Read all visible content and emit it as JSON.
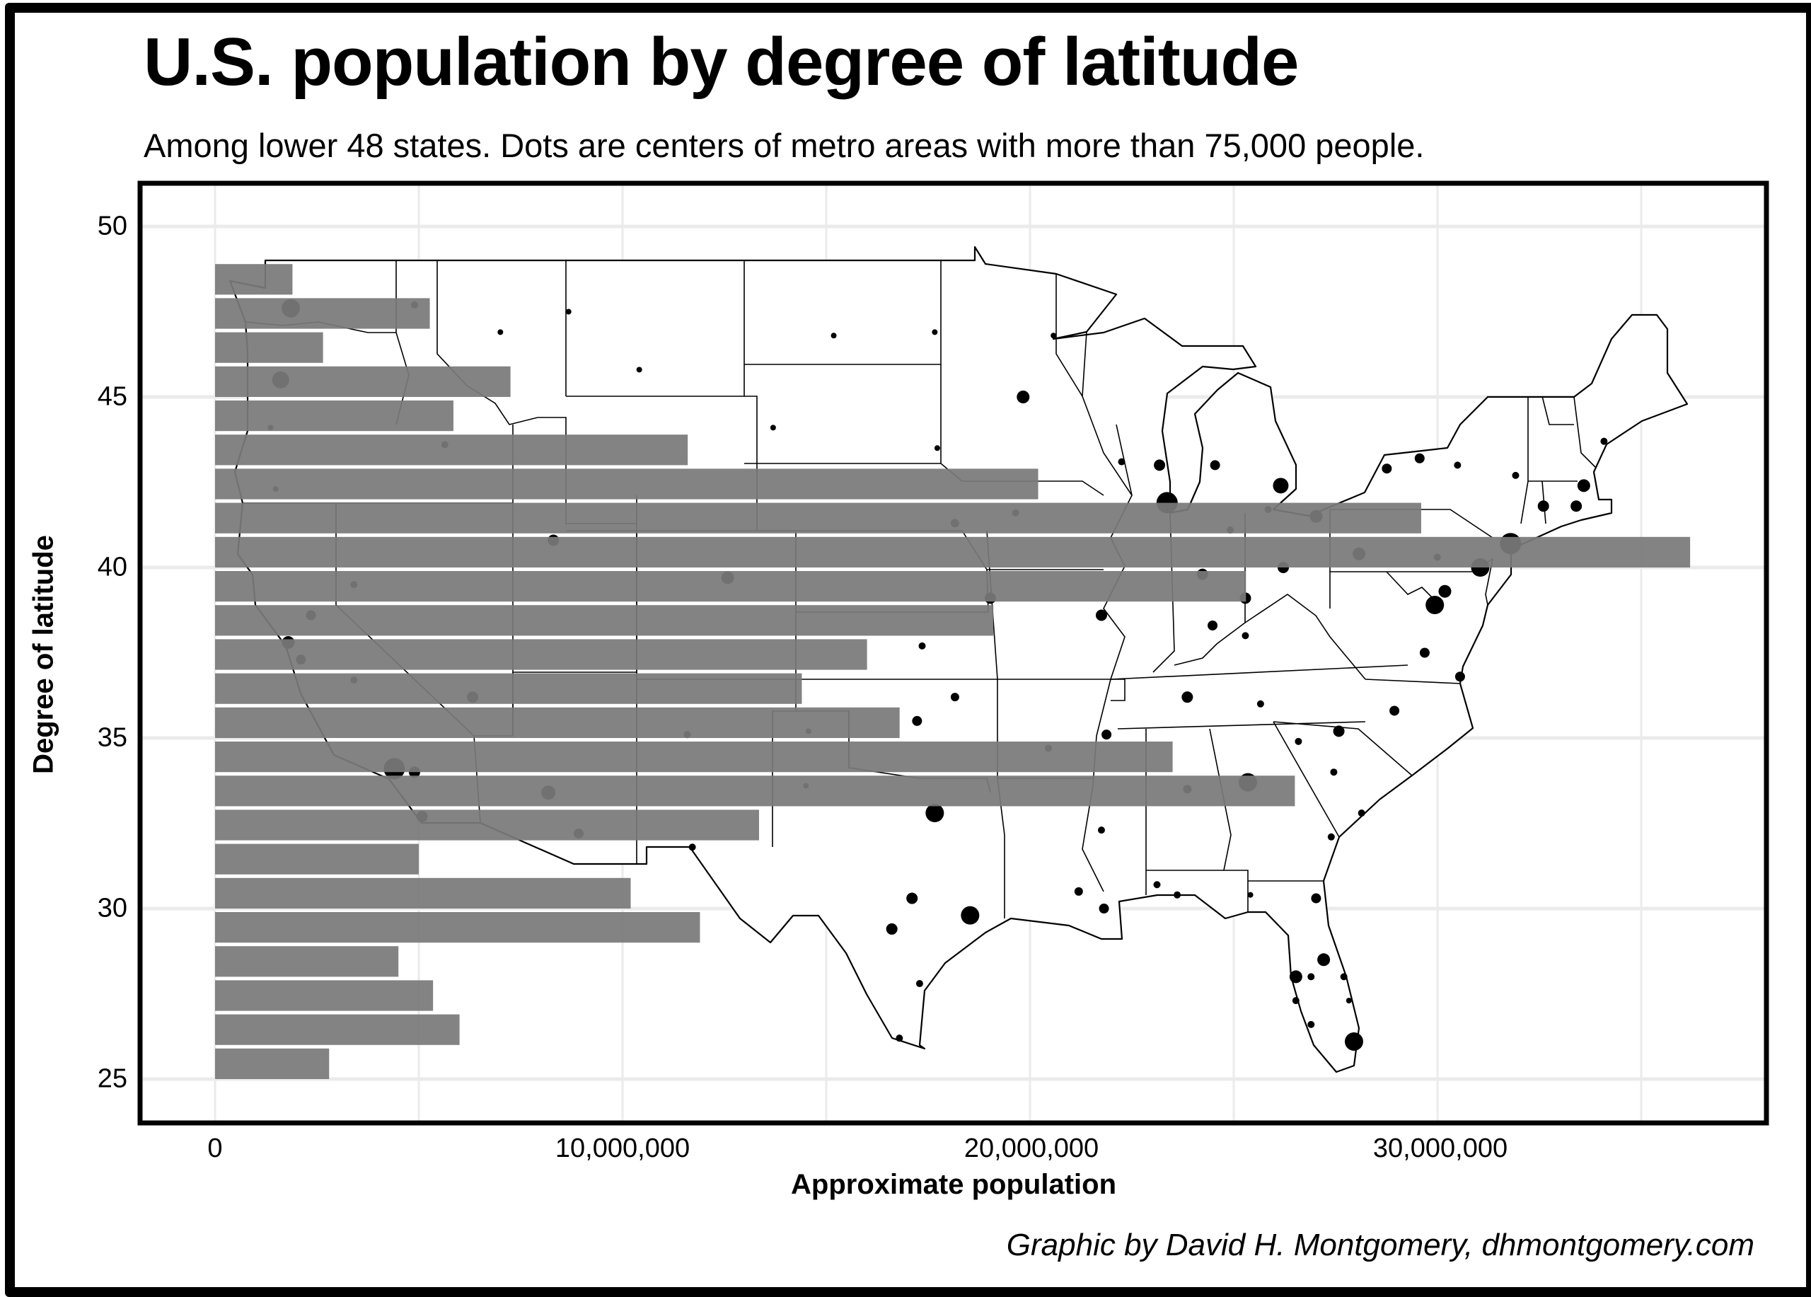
{
  "header": {
    "title": "U.S. population by degree of latitude",
    "subtitle": "Among lower 48 states. Dots are centers of metro areas with more than 75,000 people."
  },
  "axes": {
    "y_label": "Degree of latitude",
    "x_label": "Approximate population",
    "y_ticks": [
      "50",
      "45",
      "40",
      "35",
      "30",
      "25"
    ],
    "x_ticks": [
      "0",
      "10,000,000",
      "20,000,000",
      "30,000,000"
    ]
  },
  "footer": {
    "credit": "Graphic by David H. Montgomery, dhmontgomery.com"
  },
  "colors": {
    "bar": "#7a7a7a",
    "grid": "#ebebeb",
    "dot": "#000000",
    "frame": "#000000"
  },
  "chart_data": {
    "type": "bar",
    "orientation": "horizontal",
    "title": "U.S. population by degree of latitude",
    "subtitle": "Among lower 48 states. Dots are centers of metro areas with more than 75,000 people.",
    "xlabel": "Approximate population",
    "ylabel": "Degree of latitude",
    "xlim": [
      0,
      37500000
    ],
    "ylim": [
      24,
      51
    ],
    "x_ticks": [
      0,
      10000000,
      20000000,
      30000000
    ],
    "y_ticks": [
      25,
      30,
      35,
      40,
      45,
      50
    ],
    "grid": true,
    "legend": null,
    "background_layer": "Map of lower 48 U.S. states with dots at metro area centers (>75,000 people), dot size proportional to metro population",
    "categories": [
      25,
      26,
      27,
      28,
      29,
      30,
      31,
      32,
      33,
      34,
      35,
      36,
      37,
      38,
      39,
      40,
      41,
      42,
      43,
      44,
      45,
      46,
      47,
      48
    ],
    "values": [
      2800000,
      6000000,
      5350000,
      4500000,
      11900000,
      10200000,
      5000000,
      13350000,
      26500000,
      23500000,
      16800000,
      14400000,
      16000000,
      19100000,
      25300000,
      36200000,
      29600000,
      20200000,
      11600000,
      5850000,
      7250000,
      2650000,
      5270000,
      1900000
    ]
  },
  "map_dots": [
    {
      "name": "Seattle",
      "lon": -122.3,
      "lat": 47.6,
      "r": 13
    },
    {
      "name": "Portland",
      "lon": -122.7,
      "lat": 45.5,
      "r": 12
    },
    {
      "name": "Spokane",
      "lon": -117.4,
      "lat": 47.7,
      "r": 5
    },
    {
      "name": "Boise",
      "lon": -116.2,
      "lat": 43.6,
      "r": 5
    },
    {
      "name": "San Francisco",
      "lon": -122.4,
      "lat": 37.8,
      "r": 9
    },
    {
      "name": "Sacramento",
      "lon": -121.5,
      "lat": 38.6,
      "r": 7
    },
    {
      "name": "San Jose",
      "lon": -121.9,
      "lat": 37.3,
      "r": 7
    },
    {
      "name": "Fresno",
      "lon": -119.8,
      "lat": 36.7,
      "r": 5
    },
    {
      "name": "Los Angeles",
      "lon": -118.2,
      "lat": 34.1,
      "r": 15
    },
    {
      "name": "Riverside",
      "lon": -117.4,
      "lat": 34.0,
      "r": 8
    },
    {
      "name": "San Diego",
      "lon": -117.1,
      "lat": 32.7,
      "r": 8
    },
    {
      "name": "Las Vegas",
      "lon": -115.1,
      "lat": 36.2,
      "r": 8
    },
    {
      "name": "Phoenix",
      "lon": -112.1,
      "lat": 33.4,
      "r": 10
    },
    {
      "name": "Tucson",
      "lon": -110.9,
      "lat": 32.2,
      "r": 7
    },
    {
      "name": "Salt Lake City",
      "lon": -111.9,
      "lat": 40.8,
      "r": 8
    },
    {
      "name": "Denver",
      "lon": -105.0,
      "lat": 39.7,
      "r": 9
    },
    {
      "name": "Albuquerque",
      "lon": -106.6,
      "lat": 35.1,
      "r": 5
    },
    {
      "name": "El Paso",
      "lon": -106.4,
      "lat": 31.8,
      "r": 5
    },
    {
      "name": "Minneapolis",
      "lon": -93.3,
      "lat": 45.0,
      "r": 9
    },
    {
      "name": "Kansas City",
      "lon": -94.6,
      "lat": 39.1,
      "r": 8
    },
    {
      "name": "St. Louis",
      "lon": -90.2,
      "lat": 38.6,
      "r": 8
    },
    {
      "name": "Oklahoma City",
      "lon": -97.5,
      "lat": 35.5,
      "r": 7
    },
    {
      "name": "Dallas",
      "lon": -96.8,
      "lat": 32.8,
      "r": 13
    },
    {
      "name": "Houston",
      "lon": -95.4,
      "lat": 29.8,
      "r": 13
    },
    {
      "name": "San Antonio",
      "lon": -98.5,
      "lat": 29.4,
      "r": 8
    },
    {
      "name": "Austin",
      "lon": -97.7,
      "lat": 30.3,
      "r": 8
    },
    {
      "name": "New Orleans",
      "lon": -90.1,
      "lat": 30.0,
      "r": 7
    },
    {
      "name": "Memphis",
      "lon": -90.0,
      "lat": 35.1,
      "r": 7
    },
    {
      "name": "Nashville",
      "lon": -86.8,
      "lat": 36.2,
      "r": 8
    },
    {
      "name": "Atlanta",
      "lon": -84.4,
      "lat": 33.7,
      "r": 13
    },
    {
      "name": "Birmingham",
      "lon": -86.8,
      "lat": 33.5,
      "r": 6
    },
    {
      "name": "Chicago",
      "lon": -87.6,
      "lat": 41.9,
      "r": 15
    },
    {
      "name": "Milwaukee",
      "lon": -87.9,
      "lat": 43.0,
      "r": 8
    },
    {
      "name": "Detroit",
      "lon": -83.1,
      "lat": 42.4,
      "r": 11
    },
    {
      "name": "Grand Rapids",
      "lon": -85.7,
      "lat": 43.0,
      "r": 7
    },
    {
      "name": "Indianapolis",
      "lon": -86.2,
      "lat": 39.8,
      "r": 8
    },
    {
      "name": "Columbus",
      "lon": -83.0,
      "lat": 40.0,
      "r": 8
    },
    {
      "name": "Cincinnati",
      "lon": -84.5,
      "lat": 39.1,
      "r": 8
    },
    {
      "name": "Cleveland",
      "lon": -81.7,
      "lat": 41.5,
      "r": 9
    },
    {
      "name": "Pittsburgh",
      "lon": -80.0,
      "lat": 40.4,
      "r": 9
    },
    {
      "name": "Louisville",
      "lon": -85.8,
      "lat": 38.3,
      "r": 7
    },
    {
      "name": "Charlotte",
      "lon": -80.8,
      "lat": 35.2,
      "r": 8
    },
    {
      "name": "Raleigh",
      "lon": -78.6,
      "lat": 35.8,
      "r": 7
    },
    {
      "name": "Washington",
      "lon": -77.0,
      "lat": 38.9,
      "r": 13
    },
    {
      "name": "Baltimore",
      "lon": -76.6,
      "lat": 39.3,
      "r": 9
    },
    {
      "name": "Richmond",
      "lon": -77.4,
      "lat": 37.5,
      "r": 7
    },
    {
      "name": "Virginia Beach",
      "lon": -76.0,
      "lat": 36.8,
      "r": 7
    },
    {
      "name": "Philadelphia",
      "lon": -75.2,
      "lat": 40.0,
      "r": 13
    },
    {
      "name": "New York",
      "lon": -74.0,
      "lat": 40.7,
      "r": 15
    },
    {
      "name": "Hartford",
      "lon": -72.7,
      "lat": 41.8,
      "r": 8
    },
    {
      "name": "Providence",
      "lon": -71.4,
      "lat": 41.8,
      "r": 8
    },
    {
      "name": "Boston",
      "lon": -71.1,
      "lat": 42.4,
      "r": 9
    },
    {
      "name": "Buffalo",
      "lon": -78.9,
      "lat": 42.9,
      "r": 7
    },
    {
      "name": "Rochester",
      "lon": -77.6,
      "lat": 43.2,
      "r": 7
    },
    {
      "name": "Albany",
      "lon": -73.8,
      "lat": 42.7,
      "r": 5
    },
    {
      "name": "Portland ME",
      "lon": -70.3,
      "lat": 43.7,
      "r": 5
    },
    {
      "name": "Jacksonville",
      "lon": -81.7,
      "lat": 30.3,
      "r": 7
    },
    {
      "name": "Orlando",
      "lon": -81.4,
      "lat": 28.5,
      "r": 9
    },
    {
      "name": "Tampa",
      "lon": -82.5,
      "lat": 28.0,
      "r": 9
    },
    {
      "name": "Miami",
      "lon": -80.2,
      "lat": 26.1,
      "r": 13
    },
    {
      "name": "Billings",
      "lon": -108.5,
      "lat": 45.8,
      "r": 4
    },
    {
      "name": "Fargo",
      "lon": -96.8,
      "lat": 46.9,
      "r": 4
    },
    {
      "name": "Sioux Falls",
      "lon": -96.7,
      "lat": 43.5,
      "r": 4
    },
    {
      "name": "Omaha",
      "lon": -96.0,
      "lat": 41.3,
      "r": 6
    },
    {
      "name": "Des Moines",
      "lon": -93.6,
      "lat": 41.6,
      "r": 5
    },
    {
      "name": "Wichita",
      "lon": -97.3,
      "lat": 37.7,
      "r": 5
    },
    {
      "name": "Tulsa",
      "lon": -96.0,
      "lat": 36.2,
      "r": 6
    },
    {
      "name": "Little Rock",
      "lon": -92.3,
      "lat": 34.7,
      "r": 5
    },
    {
      "name": "Jackson",
      "lon": -90.2,
      "lat": 32.3,
      "r": 5
    },
    {
      "name": "Baton Rouge",
      "lon": -91.1,
      "lat": 30.5,
      "r": 6
    },
    {
      "name": "Knoxville",
      "lon": -83.9,
      "lat": 36.0,
      "r": 5
    },
    {
      "name": "Greenville",
      "lon": -82.4,
      "lat": 34.9,
      "r": 5
    },
    {
      "name": "Columbia",
      "lon": -81.0,
      "lat": 34.0,
      "r": 5
    },
    {
      "name": "Charleston",
      "lon": -79.9,
      "lat": 32.8,
      "r": 5
    },
    {
      "name": "Savannah",
      "lon": -81.1,
      "lat": 32.1,
      "r": 5
    },
    {
      "name": "Madison",
      "lon": -89.4,
      "lat": 43.1,
      "r": 5
    },
    {
      "name": "Duluth",
      "lon": -92.1,
      "lat": 46.8,
      "r": 4
    },
    {
      "name": "Bismarck",
      "lon": -100.8,
      "lat": 46.8,
      "r": 4
    },
    {
      "name": "Rapid City",
      "lon": -103.2,
      "lat": 44.1,
      "r": 4
    },
    {
      "name": "Reno",
      "lon": -119.8,
      "lat": 39.5,
      "r": 5
    },
    {
      "name": "Medford",
      "lon": -122.9,
      "lat": 42.3,
      "r": 4
    },
    {
      "name": "Eugene",
      "lon": -123.1,
      "lat": 44.1,
      "r": 4
    },
    {
      "name": "Missoula",
      "lon": -114.0,
      "lat": 46.9,
      "r": 4
    },
    {
      "name": "Great Falls",
      "lon": -111.3,
      "lat": 47.5,
      "r": 4
    },
    {
      "name": "Corpus Christi",
      "lon": -97.4,
      "lat": 27.8,
      "r": 5
    },
    {
      "name": "McAllen",
      "lon": -98.2,
      "lat": 26.2,
      "r": 5
    },
    {
      "name": "Lubbock",
      "lon": -101.9,
      "lat": 33.6,
      "r": 4
    },
    {
      "name": "Amarillo",
      "lon": -101.8,
      "lat": 35.2,
      "r": 4
    },
    {
      "name": "Syracuse",
      "lon": -76.1,
      "lat": 43.0,
      "r": 5
    },
    {
      "name": "Harrisburg",
      "lon": -76.9,
      "lat": 40.3,
      "r": 5
    },
    {
      "name": "Toledo",
      "lon": -83.6,
      "lat": 41.7,
      "r": 5
    },
    {
      "name": "Fort Wayne",
      "lon": -85.1,
      "lat": 41.1,
      "r": 5
    },
    {
      "name": "Lexington",
      "lon": -84.5,
      "lat": 38.0,
      "r": 5
    },
    {
      "name": "Tallahassee",
      "lon": -84.3,
      "lat": 30.4,
      "r": 4
    },
    {
      "name": "Mobile",
      "lon": -88.0,
      "lat": 30.7,
      "r": 5
    },
    {
      "name": "Pensacola",
      "lon": -87.2,
      "lat": 30.4,
      "r": 5
    },
    {
      "name": "Cape Coral",
      "lon": -81.9,
      "lat": 26.6,
      "r": 5
    },
    {
      "name": "Sarasota",
      "lon": -82.5,
      "lat": 27.3,
      "r": 5
    },
    {
      "name": "Palm Bay",
      "lon": -80.6,
      "lat": 28.0,
      "r": 5
    },
    {
      "name": "Port St. Lucie",
      "lon": -80.4,
      "lat": 27.3,
      "r": 4
    },
    {
      "name": "Lakeland",
      "lon": -81.9,
      "lat": 28.0,
      "r": 5
    }
  ]
}
